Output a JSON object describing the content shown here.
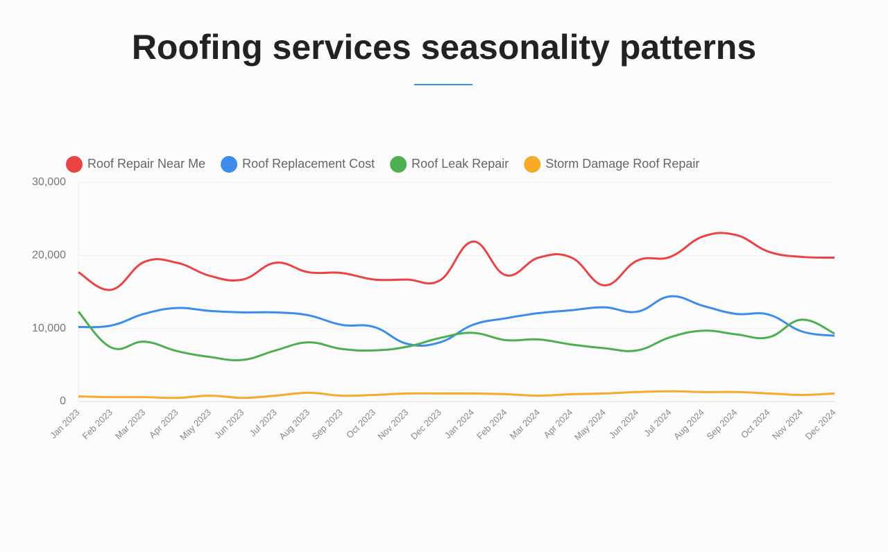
{
  "chart_data": {
    "type": "line",
    "title": "Roofing services seasonality patterns",
    "categories": [
      "Jan 2023",
      "Feb 2023",
      "Mar 2023",
      "Apr 2023",
      "May 2023",
      "Jun 2023",
      "Jul 2023",
      "Aug 2023",
      "Sep 2023",
      "Oct 2023",
      "Nov 2023",
      "Dec 2023",
      "Jan 2024",
      "Feb 2024",
      "Mar 2024",
      "Apr 2024",
      "May 2024",
      "Jun 2024",
      "Jul 2024",
      "Aug 2024",
      "Sep 2024",
      "Oct 2024",
      "Nov 2024",
      "Dec 2024"
    ],
    "series": [
      {
        "name": "Roof Repair Near Me",
        "color": "#e94343",
        "values": [
          17700,
          15300,
          19100,
          19000,
          17200,
          16700,
          19000,
          17700,
          17600,
          16700,
          16700,
          16600,
          21900,
          17300,
          19700,
          19700,
          15900,
          19300,
          19800,
          22600,
          22800,
          20500,
          19800,
          19700
        ]
      },
      {
        "name": "Roof Replacement Cost",
        "color": "#3b8ceb",
        "values": [
          10200,
          10400,
          12000,
          12800,
          12400,
          12200,
          12200,
          11800,
          10500,
          10200,
          7900,
          8100,
          10500,
          11400,
          12100,
          12500,
          12900,
          12300,
          14400,
          13100,
          12000,
          11900,
          9600,
          9000
        ]
      },
      {
        "name": "Roof Leak Repair",
        "color": "#4caf50",
        "values": [
          12300,
          7400,
          8200,
          6900,
          6100,
          5700,
          7000,
          8100,
          7200,
          7000,
          7500,
          8700,
          9400,
          8400,
          8500,
          7800,
          7300,
          7000,
          8800,
          9700,
          9200,
          8800,
          11200,
          9300
        ]
      },
      {
        "name": "Storm Damage Roof Repair",
        "color": "#f7a928",
        "values": [
          700,
          600,
          600,
          500,
          800,
          500,
          800,
          1200,
          800,
          900,
          1100,
          1100,
          1100,
          1000,
          800,
          1000,
          1100,
          1300,
          1400,
          1300,
          1300,
          1100,
          900,
          1100
        ]
      }
    ],
    "ylim": [
      0,
      30000
    ],
    "yticks": [
      0,
      {
        "value": 10000,
        "label": "10,000"
      },
      {
        "value": 20000,
        "label": "20,000"
      },
      {
        "value": 30000,
        "label": "30,000"
      }
    ],
    "grid": true
  }
}
